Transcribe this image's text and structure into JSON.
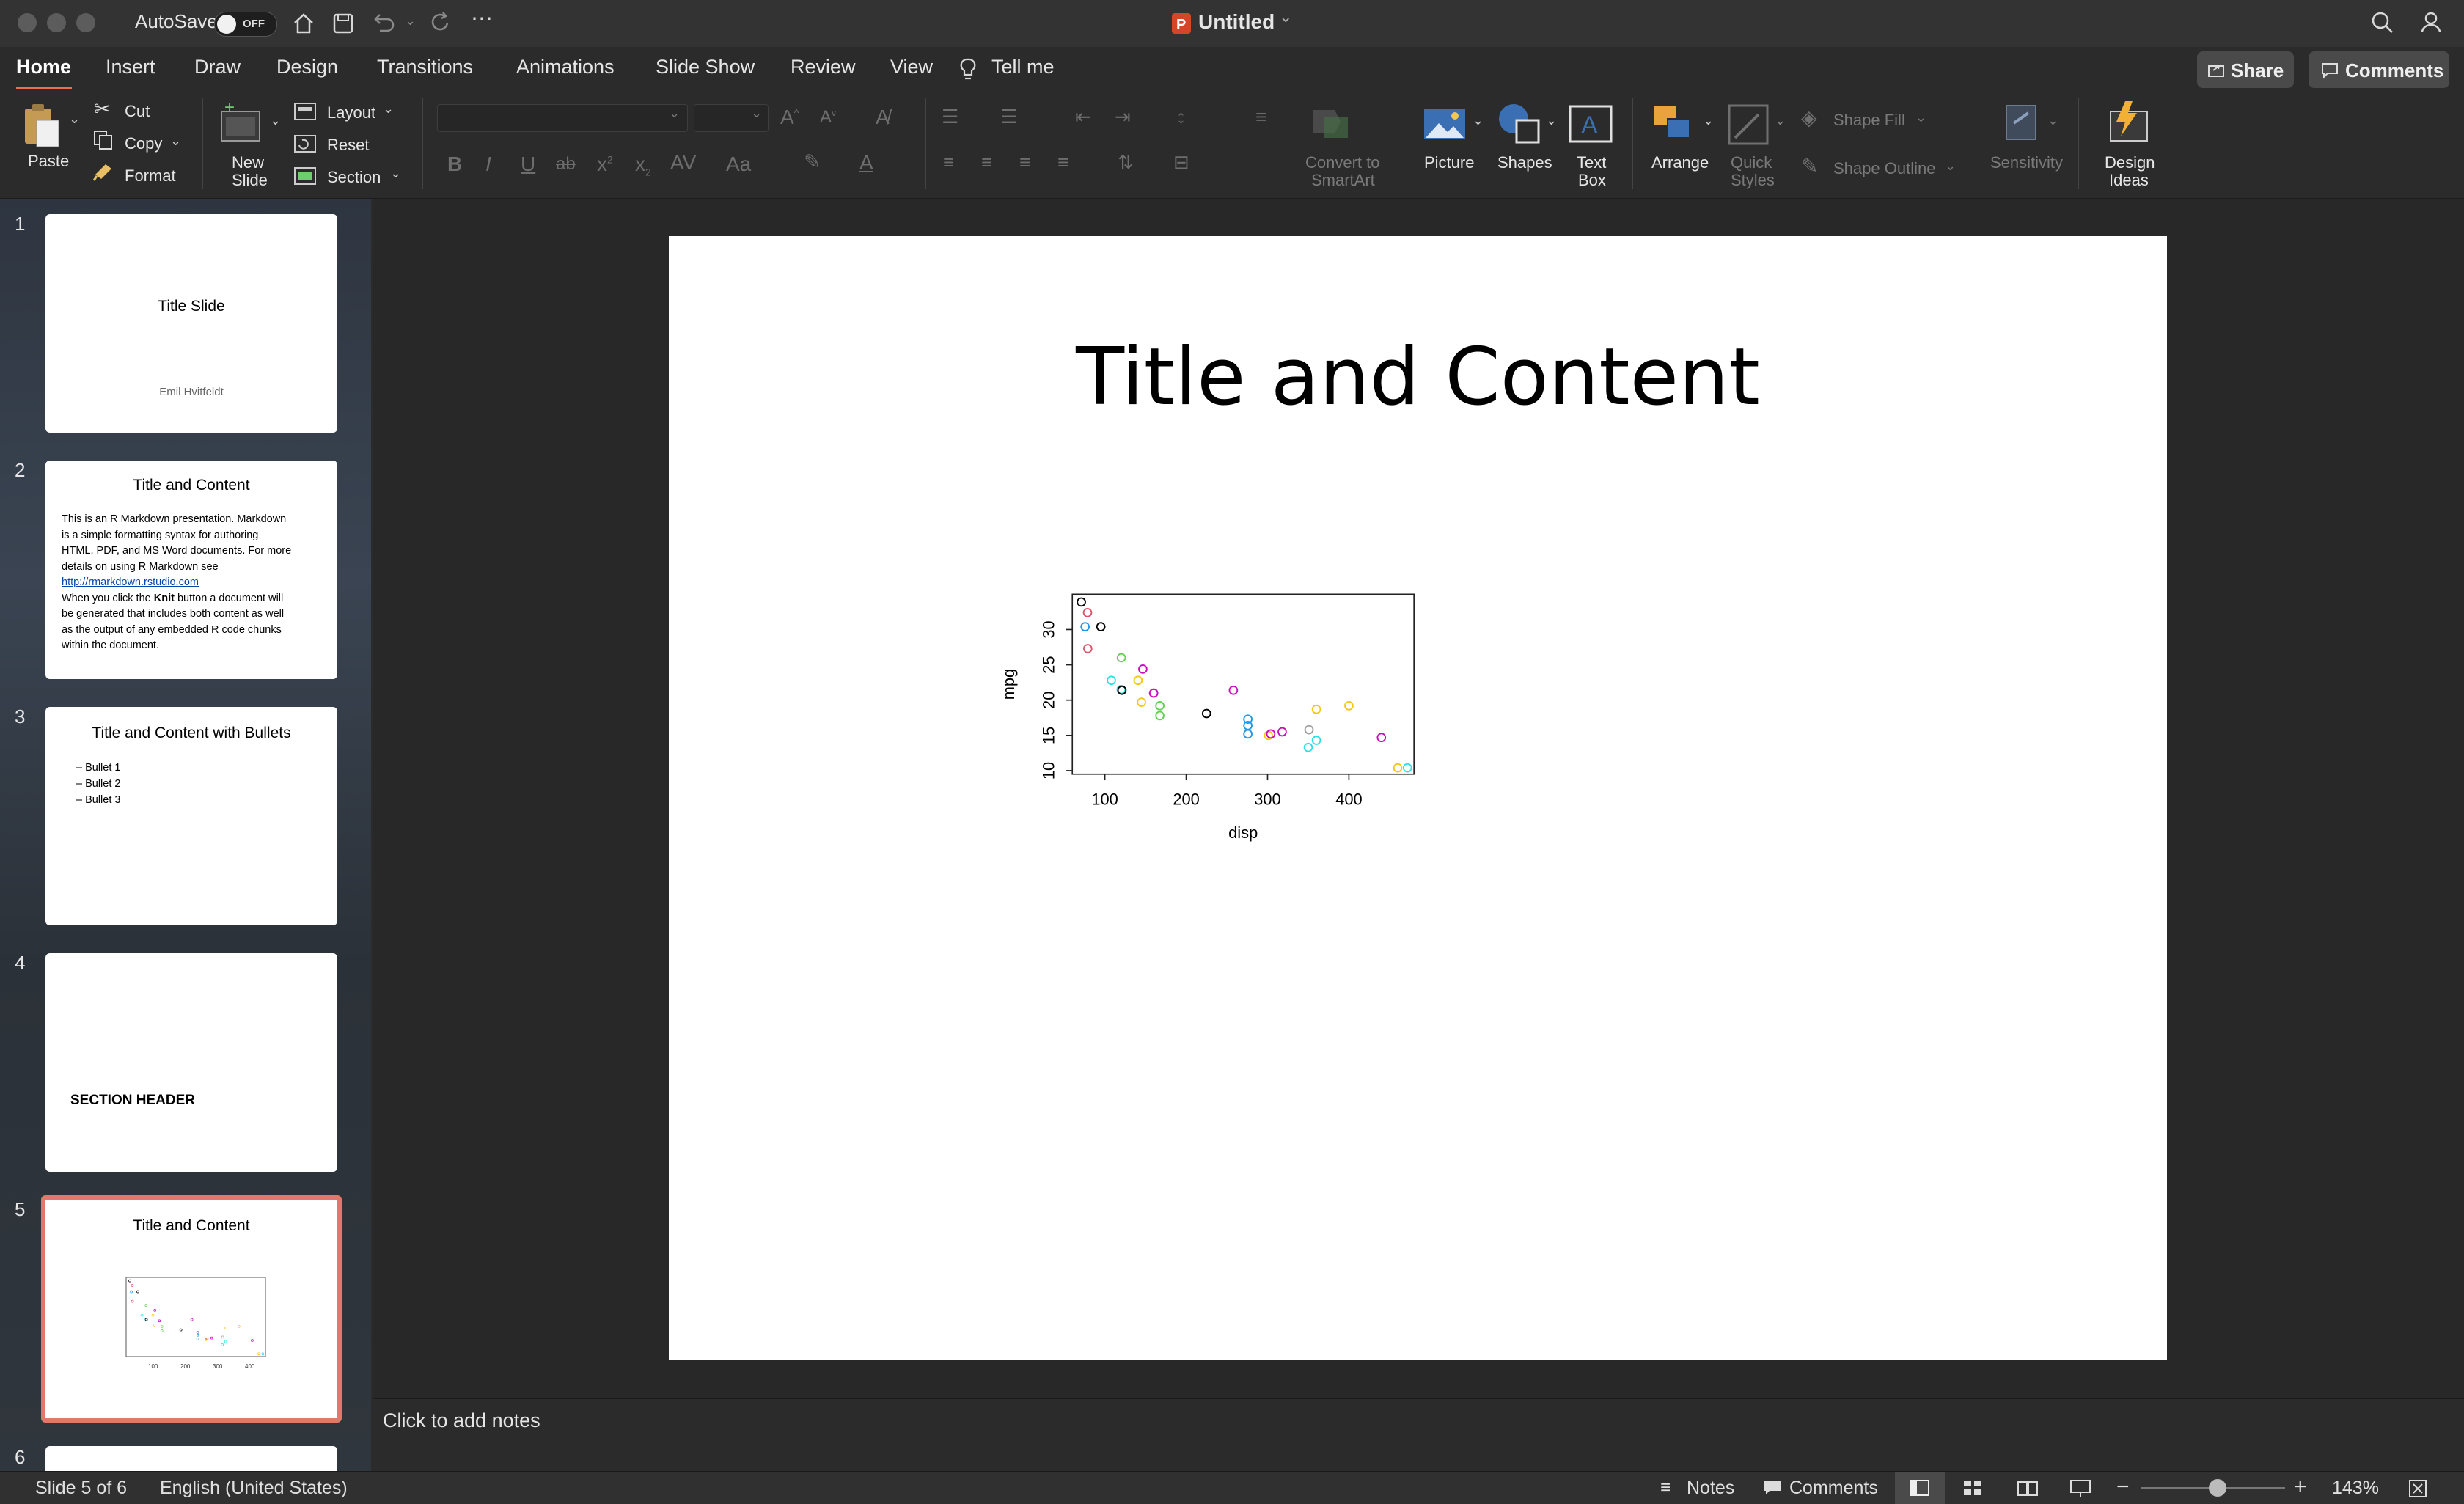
{
  "window": {
    "autosave_label": "AutoSave",
    "autosave_state": "OFF",
    "doc_title": "Untitled"
  },
  "tabs": {
    "items": [
      "Home",
      "Insert",
      "Draw",
      "Design",
      "Transitions",
      "Animations",
      "Slide Show",
      "Review",
      "View"
    ],
    "tell_me": "Tell me",
    "share": "Share",
    "comments": "Comments"
  },
  "ribbon": {
    "paste": "Paste",
    "cut": "Cut",
    "copy": "Copy",
    "format": "Format",
    "new_slide_1": "New",
    "new_slide_2": "Slide",
    "layout": "Layout",
    "reset": "Reset",
    "section": "Section",
    "convert_1": "Convert to",
    "convert_2": "SmartArt",
    "picture": "Picture",
    "shapes": "Shapes",
    "textbox_1": "Text",
    "textbox_2": "Box",
    "arrange": "Arrange",
    "quick_styles_1": "Quick",
    "quick_styles_2": "Styles",
    "shape_fill": "Shape Fill",
    "shape_outline": "Shape Outline",
    "sensitivity": "Sensitivity",
    "design_ideas_1": "Design",
    "design_ideas_2": "Ideas"
  },
  "slides": [
    {
      "num": "1",
      "title": "Title Slide",
      "subtitle": "Emil Hvitfeldt"
    },
    {
      "num": "2",
      "title": "Title and Content",
      "body_1": "This is an R Markdown presentation. Markdown",
      "body_2": "is a simple formatting syntax for authoring",
      "body_3": "HTML, PDF, and MS Word documents. For more",
      "body_4": "details on using R Markdown see",
      "body_link": "http://rmarkdown.rstudio.com",
      "body_6a": "When you click the ",
      "body_6b": "Knit",
      "body_6c": " button a document will",
      "body_7": "be generated that includes both content as well",
      "body_8": "as the output of any embedded R code chunks",
      "body_9": "within the document."
    },
    {
      "num": "3",
      "title": "Title and Content with Bullets",
      "bullets": [
        "– Bullet 1",
        "– Bullet 2",
        "– Bullet 3"
      ]
    },
    {
      "num": "4",
      "title": "SECTION HEADER"
    },
    {
      "num": "5",
      "title": "Title and Content"
    },
    {
      "num": "6"
    }
  ],
  "current_slide": {
    "title": "Title and Content"
  },
  "chart_data": {
    "type": "scatter",
    "xlabel": "disp",
    "ylabel": "mpg",
    "xlim": [
      60,
      480
    ],
    "ylim": [
      9.5,
      35
    ],
    "xticks": [
      100,
      200,
      300,
      400
    ],
    "yticks": [
      10,
      15,
      20,
      25,
      30
    ],
    "points": [
      {
        "x": 71.1,
        "y": 33.9,
        "color": "#000000"
      },
      {
        "x": 75.7,
        "y": 30.4,
        "color": "#2297e6"
      },
      {
        "x": 78.7,
        "y": 32.4,
        "color": "#df536b"
      },
      {
        "x": 79.0,
        "y": 27.3,
        "color": "#df536b"
      },
      {
        "x": 95.1,
        "y": 30.4,
        "color": "#000000"
      },
      {
        "x": 108.0,
        "y": 22.8,
        "color": "#28e2e5"
      },
      {
        "x": 120.1,
        "y": 21.5,
        "color": "#28e2e5"
      },
      {
        "x": 120.3,
        "y": 26.0,
        "color": "#61d04f"
      },
      {
        "x": 121.0,
        "y": 21.4,
        "color": "#000000"
      },
      {
        "x": 140.8,
        "y": 22.8,
        "color": "#f5c710"
      },
      {
        "x": 145.0,
        "y": 19.7,
        "color": "#f5c710"
      },
      {
        "x": 146.7,
        "y": 24.4,
        "color": "#cd0bbc"
      },
      {
        "x": 160.0,
        "y": 21.0,
        "color": "#cd0bbc"
      },
      {
        "x": 160.0,
        "y": 21.0,
        "color": "#cd0bbc"
      },
      {
        "x": 167.6,
        "y": 19.2,
        "color": "#61d04f"
      },
      {
        "x": 167.6,
        "y": 17.8,
        "color": "#61d04f"
      },
      {
        "x": 225.0,
        "y": 18.1,
        "color": "#000000"
      },
      {
        "x": 258.0,
        "y": 21.4,
        "color": "#cd0bbc"
      },
      {
        "x": 275.8,
        "y": 16.4,
        "color": "#2297e6"
      },
      {
        "x": 275.8,
        "y": 17.3,
        "color": "#2297e6"
      },
      {
        "x": 275.8,
        "y": 15.2,
        "color": "#2297e6"
      },
      {
        "x": 301.0,
        "y": 15.0,
        "color": "#f5c710"
      },
      {
        "x": 304.0,
        "y": 15.2,
        "color": "#cd0bbc"
      },
      {
        "x": 318.0,
        "y": 15.5,
        "color": "#cd0bbc"
      },
      {
        "x": 350.0,
        "y": 13.3,
        "color": "#28e2e5"
      },
      {
        "x": 351.0,
        "y": 15.8,
        "color": "#9e9e9e"
      },
      {
        "x": 360.0,
        "y": 18.7,
        "color": "#f5c710"
      },
      {
        "x": 360.0,
        "y": 14.3,
        "color": "#28e2e5"
      },
      {
        "x": 400.0,
        "y": 19.2,
        "color": "#f5c710"
      },
      {
        "x": 440.0,
        "y": 14.7,
        "color": "#cd0bbc"
      },
      {
        "x": 460.0,
        "y": 10.4,
        "color": "#f5c710"
      },
      {
        "x": 472.0,
        "y": 10.4,
        "color": "#28e2e5"
      }
    ]
  },
  "notes": {
    "placeholder": "Click to add notes"
  },
  "status": {
    "slide_info": "Slide 5 of 6",
    "language": "English (United States)",
    "notes_btn": "Notes",
    "comments_btn": "Comments",
    "zoom": "143%"
  },
  "colors": {
    "accent": "#e8704f",
    "selected_thumb_border": "#e2786a"
  }
}
